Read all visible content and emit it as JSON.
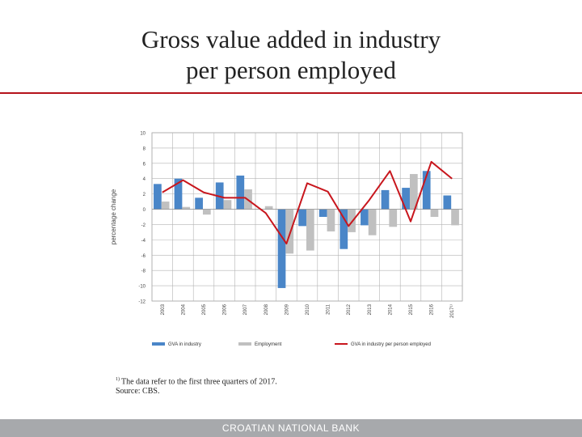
{
  "title": {
    "line1": "Gross value added in industry",
    "line2": "per person employed"
  },
  "chart_data": {
    "type": "bar",
    "title": "",
    "ylabel": "percentage change",
    "xlabel": "",
    "ylim": [
      -12,
      10
    ],
    "yticks": [
      10,
      8,
      6,
      4,
      2,
      0,
      -2,
      -4,
      -6,
      -8,
      -10,
      -12
    ],
    "ytick_labels": [
      "10",
      "8",
      "6",
      "4",
      "2",
      "0",
      "-2",
      "-4",
      "-6",
      "-8",
      "-10",
      "-12"
    ],
    "categories": [
      "2003",
      "2004",
      "2005",
      "2006",
      "2007",
      "2008",
      "2009",
      "2010",
      "2011",
      "2012",
      "2013",
      "2014",
      "2015",
      "2016",
      "2017"
    ],
    "category_labels": [
      "2003",
      "2004",
      "2005",
      "2006",
      "2007",
      "2008",
      "2009",
      "2010",
      "2011",
      "2012",
      "2013",
      "2014",
      "2015",
      "2016",
      "2017¹⁾"
    ],
    "grid": true,
    "legend_position": "bottom",
    "series": [
      {
        "name": "GVA in industry",
        "kind": "bar",
        "color": "#4a86c8",
        "values": [
          3.3,
          4.0,
          1.5,
          3.5,
          4.4,
          0.0,
          -10.3,
          -2.2,
          -1.0,
          -5.2,
          -2.1,
          2.5,
          2.8,
          5.0,
          1.8
        ]
      },
      {
        "name": "Employment",
        "kind": "bar",
        "color": "#c0c0c0",
        "values": [
          1.0,
          0.3,
          -0.7,
          1.2,
          2.6,
          0.4,
          -5.8,
          -5.4,
          -2.9,
          -3.0,
          -3.4,
          -2.3,
          4.6,
          -1.0,
          -2.1
        ]
      },
      {
        "name": "GVA in industry per person employed",
        "kind": "line",
        "color": "#c8161d",
        "values": [
          2.2,
          3.8,
          2.2,
          1.5,
          1.5,
          -0.5,
          -4.5,
          3.4,
          2.3,
          -2.2,
          1.2,
          5.0,
          -1.6,
          6.2,
          4.0
        ]
      }
    ]
  },
  "footnote": {
    "marker": "1)",
    "text": "The data refer to the first three quarters of 2017.",
    "source": "Source: CBS."
  },
  "footer": {
    "text": "CROATIAN NATIONAL BANK"
  }
}
